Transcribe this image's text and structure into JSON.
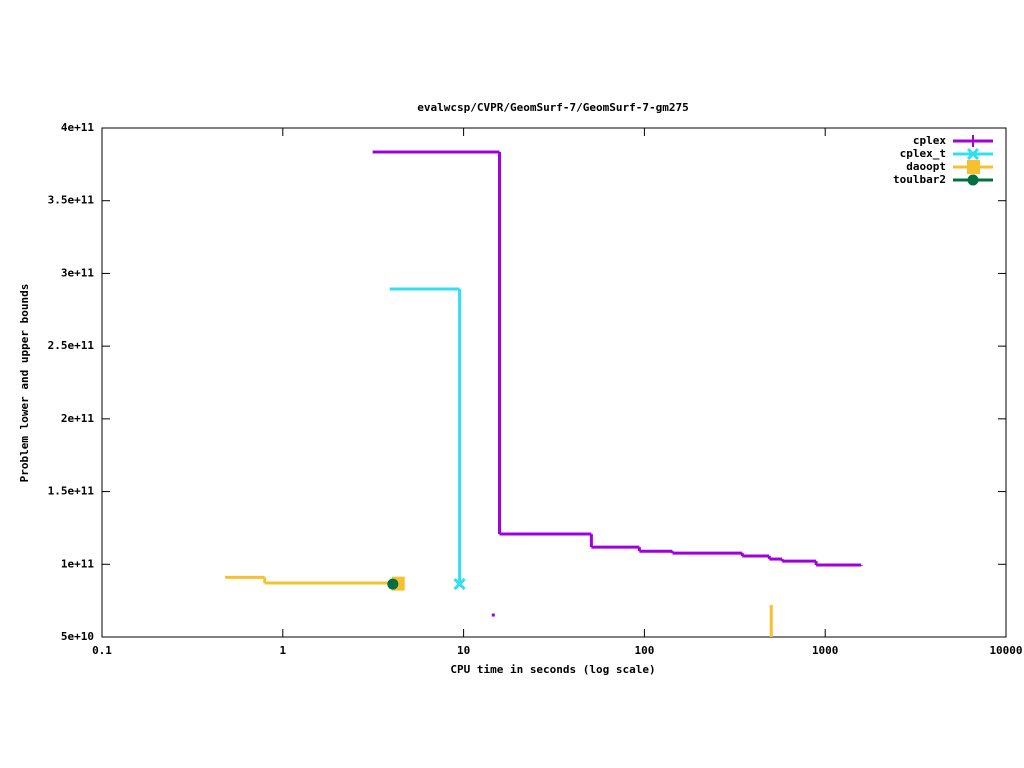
{
  "chart_data": {
    "type": "step",
    "title": "evalwcsp/CVPR/GeomSurf-7/GeomSurf-7-gm275",
    "xlabel": "CPU time in seconds (log scale)",
    "ylabel": "Problem lower and upper bounds",
    "xscale": "log",
    "xlim": [
      0.1,
      10000
    ],
    "xticks": [
      0.1,
      1,
      10,
      100,
      1000,
      10000
    ],
    "ylim": [
      50000000000,
      400000000000
    ],
    "yticks": [
      {
        "value": 50000000000,
        "label": "5e+10"
      },
      {
        "value": 100000000000,
        "label": "1e+11"
      },
      {
        "value": 150000000000,
        "label": "1.5e+11"
      },
      {
        "value": 200000000000,
        "label": "2e+11"
      },
      {
        "value": 250000000000,
        "label": "2.5e+11"
      },
      {
        "value": 300000000000,
        "label": "3e+11"
      },
      {
        "value": 350000000000,
        "label": "3.5e+11"
      },
      {
        "value": 400000000000,
        "label": "4e+11"
      }
    ],
    "legend": "top-right",
    "series": [
      {
        "name": "cplex",
        "color": "#a000e0",
        "marker": "plus",
        "x": [
          3.14,
          15.8,
          50.9,
          93.8,
          143,
          348,
          491,
          578,
          891,
          1581,
          null,
          14.6
        ],
        "values": [
          383500000000,
          120800000000,
          111800000000,
          109000000000,
          107700000000,
          105700000000,
          103600000000,
          102200000000,
          99500000000,
          99000000000,
          null,
          65100000000
        ]
      },
      {
        "name": "cplex_t",
        "color": "#30e0f0",
        "marker": "cross",
        "x": [
          3.9,
          9.5
        ],
        "values": [
          289300000000,
          86400000000
        ]
      },
      {
        "name": "daoopt",
        "color": "#f8c030",
        "marker": "square",
        "x": [
          0.48,
          0.794,
          4.32,
          null,
          503,
          503
        ],
        "values": [
          91000000000,
          87100000000,
          86700000000,
          null,
          72000000000,
          50000000000
        ]
      },
      {
        "name": "toulbar2",
        "color": "#007040",
        "marker": "circle",
        "x": [
          4.06
        ],
        "values": [
          86400000000
        ]
      }
    ]
  }
}
